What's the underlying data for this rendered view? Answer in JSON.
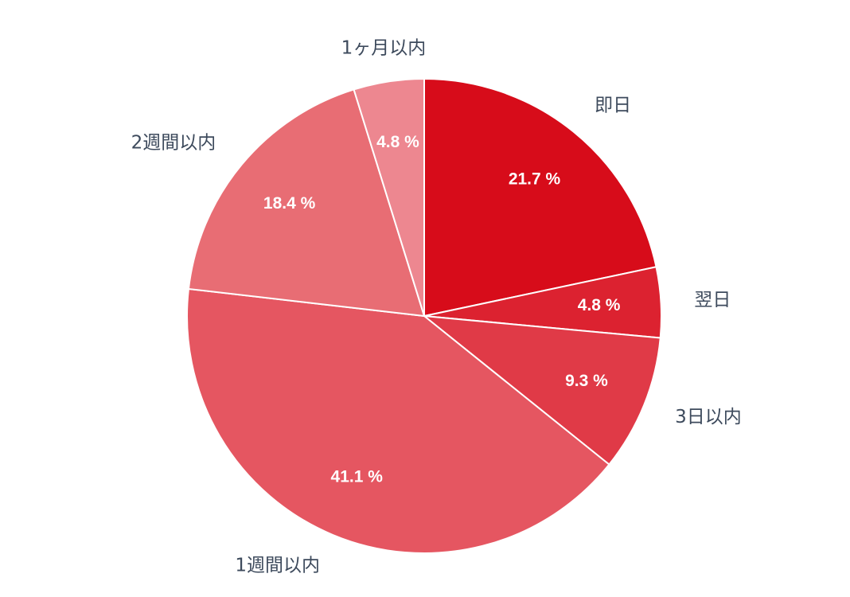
{
  "chart_data": {
    "type": "pie",
    "categories": [
      "即日",
      "翌日",
      "3日以内",
      "1週間以内",
      "2週間以内",
      "1ヶ月以内"
    ],
    "values": [
      21.7,
      4.8,
      9.3,
      41.1,
      18.4,
      4.8
    ],
    "value_labels": [
      "21.7 %",
      "4.8 %",
      "9.3 %",
      "41.1 %",
      "18.4 %",
      "4.8 %"
    ],
    "colors": [
      "#d70c1a",
      "#dc2230",
      "#e03a47",
      "#e55661",
      "#e86d74",
      "#ed8790"
    ]
  }
}
